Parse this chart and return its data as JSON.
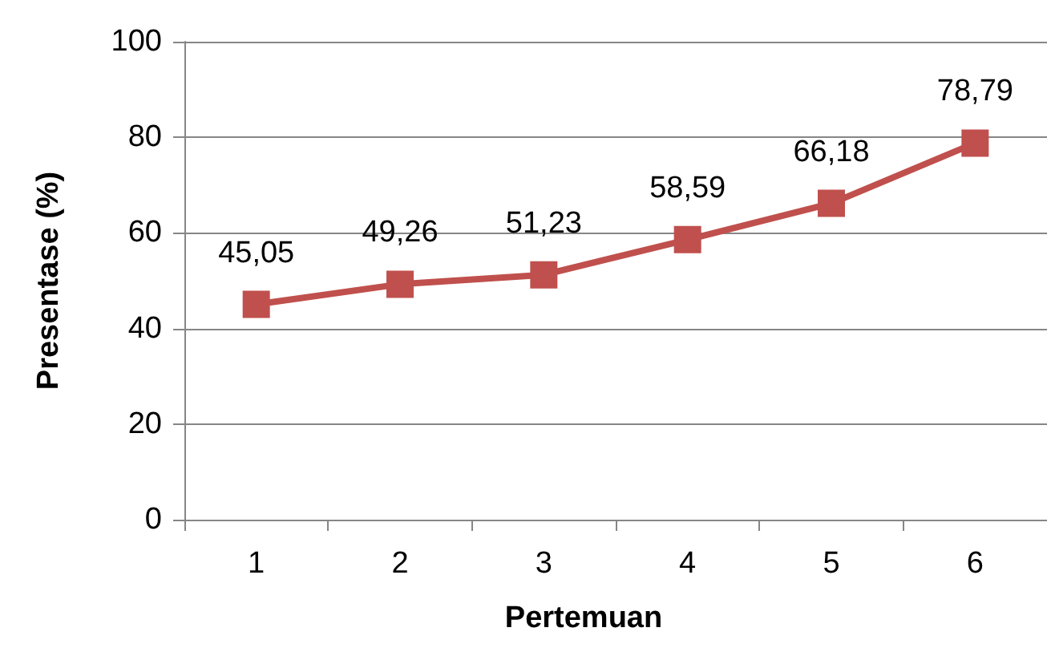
{
  "chart_data": {
    "type": "line",
    "xlabel": "Pertemuan",
    "ylabel": "Presentase (%)",
    "categories": [
      "1",
      "2",
      "3",
      "4",
      "5",
      "6"
    ],
    "series": [
      {
        "color": "#c0504d",
        "values": [
          45.05,
          49.26,
          51.23,
          58.59,
          66.18,
          78.79
        ],
        "value_labels": [
          "45,05",
          "49,26",
          "51,23",
          "58,59",
          "66,18",
          "78,79"
        ]
      }
    ],
    "ylim": [
      0,
      100
    ],
    "yticks": [
      0,
      20,
      40,
      60,
      80,
      100
    ],
    "grid": "y",
    "marker": "square",
    "line_style": "solid"
  }
}
